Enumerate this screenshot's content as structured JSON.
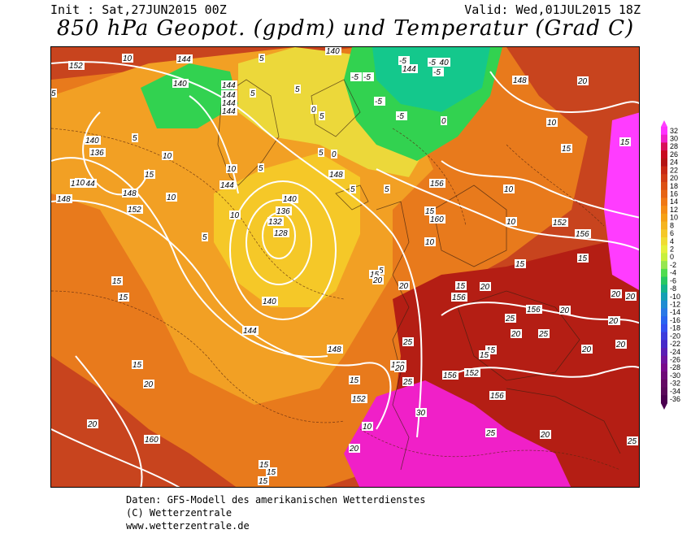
{
  "header": {
    "init": "Init : Sat,27JUN2015 00Z",
    "valid": "Valid: Wed,01JUL2015 18Z",
    "title": "850 hPa Geopot. (gpdm) und Temperatur (Grad C)"
  },
  "legend": {
    "arrow_top_color": "#ff40ff",
    "arrow_bottom_color": "#4b0050",
    "stops": [
      {
        "v": "32",
        "c": "#ff30ff"
      },
      {
        "v": "30",
        "c": "#f020c8"
      },
      {
        "v": "28",
        "c": "#d8105a"
      },
      {
        "v": "26",
        "c": "#c80a1e"
      },
      {
        "v": "24",
        "c": "#b41414"
      },
      {
        "v": "22",
        "c": "#c82814"
      },
      {
        "v": "20",
        "c": "#d23c14"
      },
      {
        "v": "18",
        "c": "#dc5014"
      },
      {
        "v": "16",
        "c": "#e66414"
      },
      {
        "v": "14",
        "c": "#f07814"
      },
      {
        "v": "12",
        "c": "#f58c14"
      },
      {
        "v": "10",
        "c": "#f5a014"
      },
      {
        "v": "8",
        "c": "#f5b41e"
      },
      {
        "v": "6",
        "c": "#f5c828"
      },
      {
        "v": "4",
        "c": "#f0dc32"
      },
      {
        "v": "2",
        "c": "#e6f03c"
      },
      {
        "v": "0",
        "c": "#c8f03c"
      },
      {
        "v": "-2",
        "c": "#96e650"
      },
      {
        "v": "-4",
        "c": "#50dc50"
      },
      {
        "v": "-6",
        "c": "#28c864"
      },
      {
        "v": "-8",
        "c": "#14b48c"
      },
      {
        "v": "-10",
        "c": "#14a0b4"
      },
      {
        "v": "-12",
        "c": "#1e8cd2"
      },
      {
        "v": "-14",
        "c": "#2878e6"
      },
      {
        "v": "-16",
        "c": "#2864f0"
      },
      {
        "v": "-18",
        "c": "#3250f0"
      },
      {
        "v": "-20",
        "c": "#3c3cdc"
      },
      {
        "v": "-22",
        "c": "#4628c8"
      },
      {
        "v": "-24",
        "c": "#5a1eb4"
      },
      {
        "v": "-26",
        "c": "#6e14a0"
      },
      {
        "v": "-28",
        "c": "#780a8c"
      },
      {
        "v": "-30",
        "c": "#6e0a78"
      },
      {
        "v": "-32",
        "c": "#640a64"
      },
      {
        "v": "-34",
        "c": "#5a0a5a"
      },
      {
        "v": "-36",
        "c": "#4b0050"
      }
    ]
  },
  "map": {
    "colors": {
      "warm_red": "#c8441e",
      "orange": "#e87a1c",
      "light_orange": "#f2a024",
      "yellow": "#f5c828",
      "pale_yellow": "#ecd83a",
      "green": "#32d250",
      "teal": "#14c88c",
      "dark_red": "#b41e14",
      "magenta": "#f020c8",
      "pink": "#ff3cff",
      "contour_white": "#ffffff"
    },
    "geopotential_labels": [
      "152",
      "144",
      "140",
      "144",
      "144",
      "144",
      "144",
      "140",
      "148",
      "140",
      "144",
      "148",
      "144",
      "140",
      "136",
      "148",
      "144",
      "152",
      "148",
      "144",
      "140",
      "136",
      "132",
      "128",
      "140",
      "144",
      "148",
      "152",
      "156",
      "160",
      "152",
      "156",
      "156",
      "156",
      "152",
      "156",
      "152",
      "156",
      "152",
      "160"
    ],
    "temperature_labels": [
      "10",
      "5",
      "5",
      "10",
      "5",
      "5",
      "-5",
      "-5",
      "-5",
      "-5",
      "-5",
      "-5",
      "-5",
      "0",
      "0",
      "5",
      "5",
      "10",
      "5",
      "10",
      "15",
      "10",
      "10",
      "5",
      "5",
      "0",
      "5",
      "5",
      "10",
      "10",
      "15",
      "15",
      "10",
      "5",
      "15",
      "15",
      "15",
      "20",
      "15",
      "20",
      "20",
      "15",
      "10",
      "15",
      "25",
      "20",
      "25",
      "20",
      "20",
      "20",
      "25",
      "20",
      "20",
      "25",
      "15",
      "15",
      "20",
      "25",
      "15",
      "15",
      "20",
      "20",
      "30",
      "25",
      "20",
      "25",
      "15",
      "15",
      "10",
      "20",
      "15",
      "20",
      "25",
      "20",
      "15"
    ]
  },
  "footer": {
    "line1": "Daten: GFS-Modell des amerikanischen Wetterdienstes",
    "line2": "(C) Wetterzentrale",
    "line3": "www.wetterzentrale.de"
  }
}
